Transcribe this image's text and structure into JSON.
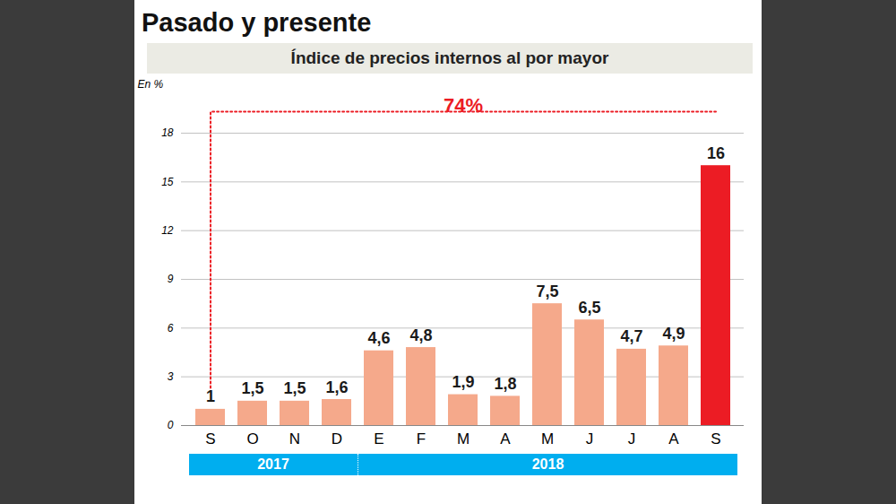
{
  "chart_data": {
    "type": "bar",
    "title": "Pasado y presente",
    "subtitle": "Índice de precios internos al por mayor",
    "y_label": "En %",
    "annotation": "74%",
    "categories": [
      "S",
      "O",
      "N",
      "D",
      "E",
      "F",
      "M",
      "A",
      "M",
      "J",
      "J",
      "A",
      "S"
    ],
    "values": [
      1,
      1.5,
      1.5,
      1.6,
      4.6,
      4.8,
      1.9,
      1.8,
      7.5,
      6.5,
      4.7,
      4.9,
      16
    ],
    "value_labels": [
      "1",
      "1,5",
      "1,5",
      "1,6",
      "4,6",
      "4,8",
      "1,9",
      "1,8",
      "7,5",
      "6,5",
      "4,7",
      "4,9",
      "16"
    ],
    "colors": [
      "#f5a98b",
      "#f5a98b",
      "#f5a98b",
      "#f5a98b",
      "#f5a98b",
      "#f5a98b",
      "#f5a98b",
      "#f5a98b",
      "#f5a98b",
      "#f5a98b",
      "#f5a98b",
      "#f5a98b",
      "#ec1c24"
    ],
    "year_groups": [
      {
        "label": "2017",
        "count": 4
      },
      {
        "label": "2018",
        "count": 9
      }
    ],
    "ylim": [
      0,
      18
    ],
    "yticks": [
      0,
      3,
      6,
      9,
      12,
      15,
      18
    ],
    "grid": true,
    "data_labels": true
  }
}
